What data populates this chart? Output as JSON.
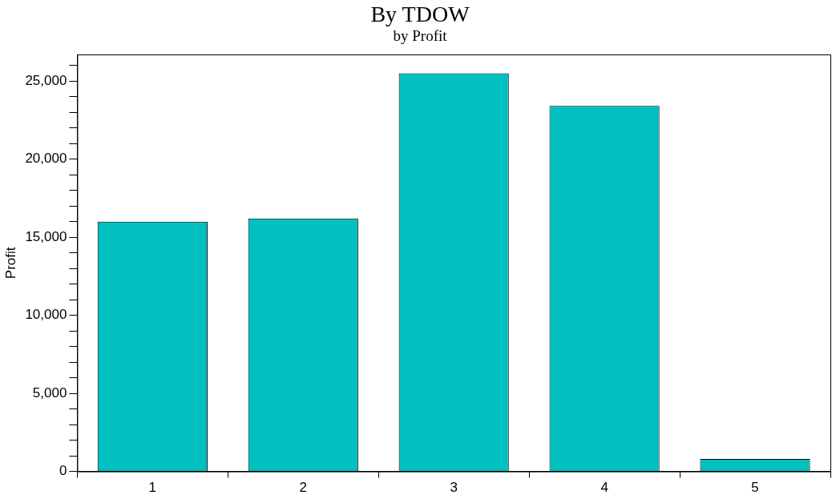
{
  "chart_data": {
    "type": "bar",
    "title": "By TDOW",
    "subtitle": "by Profit",
    "ylabel": "Profit",
    "categories": [
      "1",
      "2",
      "3",
      "4",
      "5"
    ],
    "values": [
      16000,
      16200,
      25500,
      23400,
      800
    ],
    "color": "#00c0c0",
    "ylim": [
      0,
      26700
    ],
    "yticks": [
      0,
      {
        "value": 1000,
        "label": null
      },
      {
        "value": 2000,
        "label": null
      },
      {
        "value": 3000,
        "label": null
      },
      {
        "value": 4000,
        "label": null
      },
      {
        "value": 5000,
        "label": "5,000"
      },
      {
        "value": 6000,
        "label": null
      },
      {
        "value": 7000,
        "label": null
      },
      {
        "value": 8000,
        "label": null
      },
      {
        "value": 9000,
        "label": null
      },
      {
        "value": 10000,
        "label": "10,000"
      },
      {
        "value": 11000,
        "label": null
      },
      {
        "value": 12000,
        "label": null
      },
      {
        "value": 13000,
        "label": null
      },
      {
        "value": 14000,
        "label": null
      },
      {
        "value": 15000,
        "label": "15,000"
      },
      {
        "value": 16000,
        "label": null
      },
      {
        "value": 17000,
        "label": null
      },
      {
        "value": 18000,
        "label": null
      },
      {
        "value": 19000,
        "label": null
      },
      {
        "value": 20000,
        "label": "20,000"
      },
      {
        "value": 21000,
        "label": null
      },
      {
        "value": 22000,
        "label": null
      },
      {
        "value": 23000,
        "label": null
      },
      {
        "value": 24000,
        "label": null
      },
      {
        "value": 25000,
        "label": "25,000"
      },
      {
        "value": 26000,
        "label": null
      }
    ],
    "grid": false,
    "legend": false
  }
}
